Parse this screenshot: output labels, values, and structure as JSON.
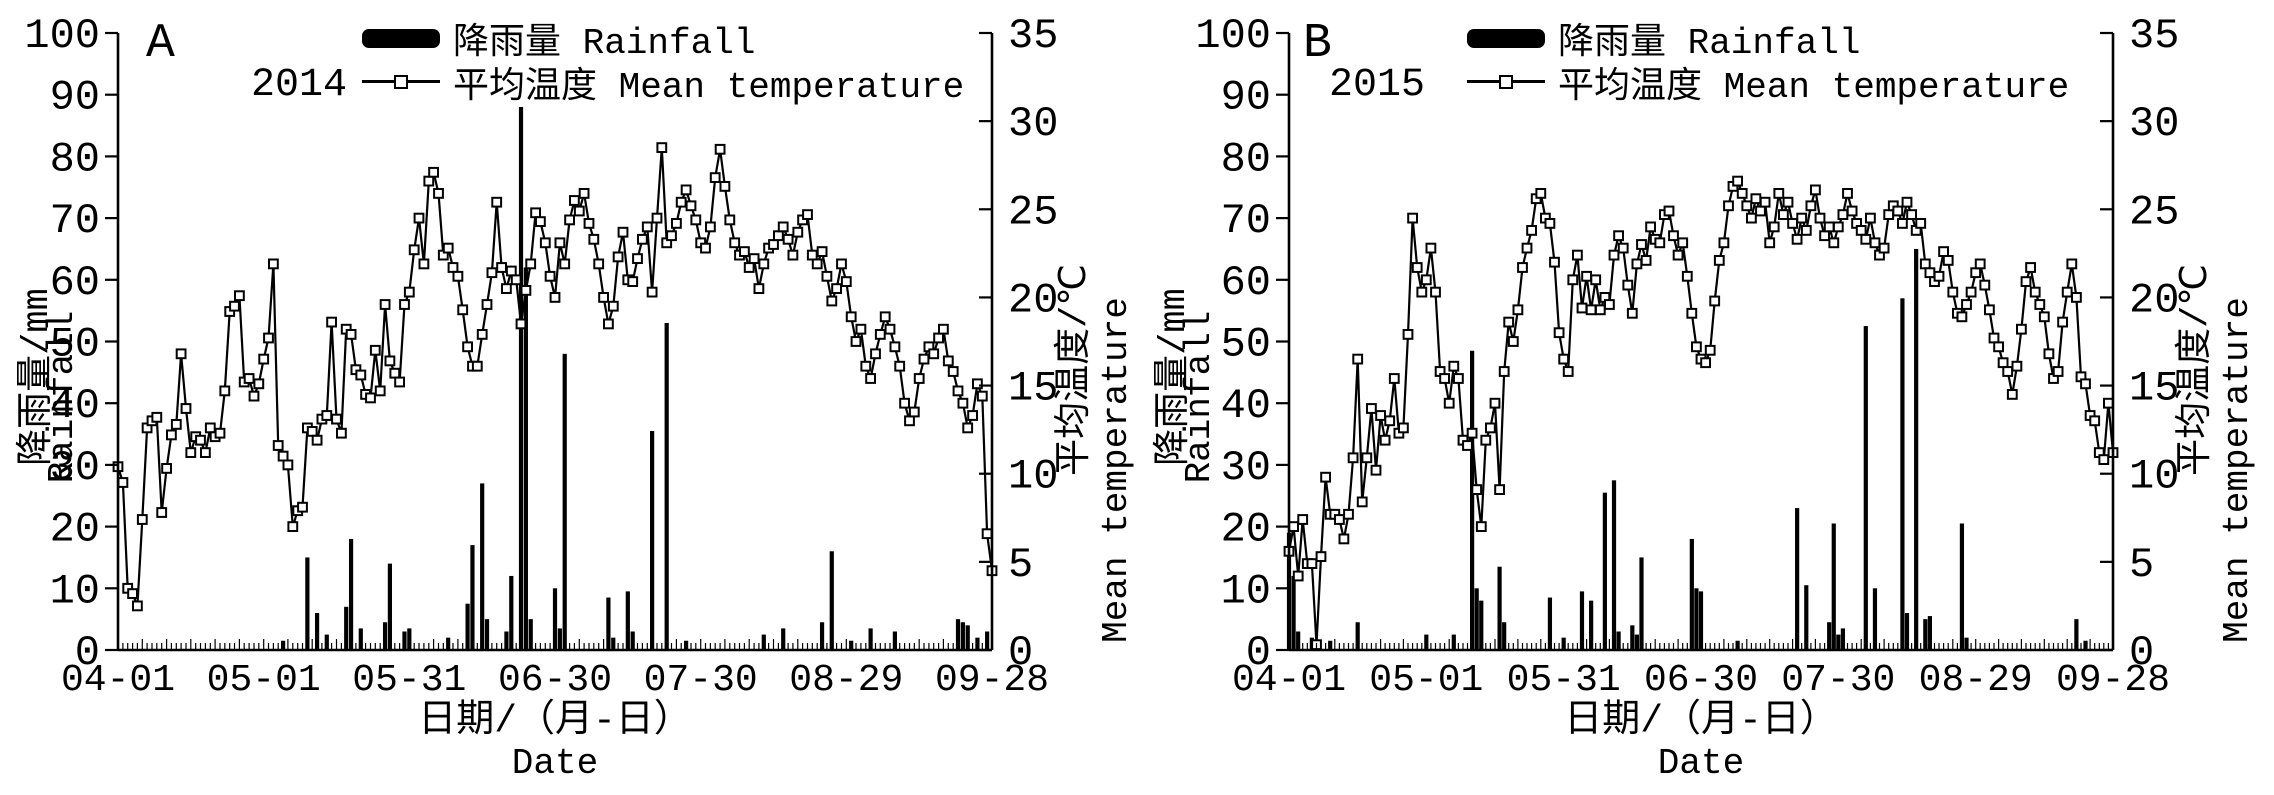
{
  "figure": {
    "background": "#ffffff",
    "ink": "#000000",
    "x_axis_title_cn": "日期/（月-日）",
    "x_axis_title_en": "Date",
    "x_tick_labels": [
      "04-01",
      "05-01",
      "05-31",
      "06-30",
      "07-30",
      "08-29",
      "09-28"
    ],
    "x_tick_days": [
      0,
      30,
      60,
      90,
      120,
      150,
      180
    ],
    "calendar_months": [
      [
        "04",
        30
      ],
      [
        "05",
        31
      ],
      [
        "06",
        30
      ],
      [
        "07",
        31
      ],
      [
        "08",
        31
      ],
      [
        "09",
        28
      ]
    ],
    "left_axis": {
      "title_cn": "降雨量/mm",
      "title_en": "Rainfall",
      "min": 0,
      "max": 100,
      "tick_step": 10
    },
    "right_axis": {
      "title_cn": "平均温度/℃",
      "title_en": "Mean temperature",
      "min": 0,
      "max": 35,
      "tick_step": 5
    },
    "legend": [
      {
        "swatch": "filled-bar",
        "label": "降雨量 Rainfall"
      },
      {
        "swatch": "line-open-square-marker",
        "label": "平均温度 Mean temperature"
      }
    ]
  },
  "chart_data": [
    {
      "panel_label": "A",
      "year": "2014",
      "type": "combo-bar-line",
      "x_start": "04-01",
      "x_end": "09-28",
      "n_days": 181,
      "left_ylim": [
        0,
        100
      ],
      "right_ylim": [
        0,
        35
      ],
      "rainfall_mm_by_date": {
        "05-05": 1.5,
        "05-10": 15,
        "05-12": 6,
        "05-14": 2.5,
        "05-18": 7,
        "05-19": 18,
        "05-21": 3.5,
        "05-26": 4.5,
        "05-27": 14,
        "05-30": 3,
        "05-31": 3.5,
        "06-08": 2,
        "06-12": 7.5,
        "06-13": 17,
        "06-15": 27,
        "06-16": 5,
        "06-20": 3,
        "06-21": 12,
        "06-23": 88,
        "06-24": 62,
        "06-25": 5,
        "06-30": 10,
        "07-01": 3.5,
        "07-02": 48,
        "07-11": 8.5,
        "07-12": 2,
        "07-15": 9.5,
        "07-16": 3,
        "07-20": 35.5,
        "07-23": 53,
        "07-27": 1.5,
        "08-12": 2.5,
        "08-16": 3.5,
        "08-24": 4.5,
        "08-26": 16,
        "08-30": 1.5,
        "09-03": 3.5,
        "09-08": 3,
        "09-21": 5,
        "09-22": 4.5,
        "09-23": 4,
        "09-25": 2,
        "09-27": 3
      },
      "mean_temperature_c_daily": [
        10.4,
        9.5,
        3.5,
        3.2,
        2.5,
        7.4,
        12.6,
        13.0,
        13.2,
        7.8,
        10.3,
        12.2,
        12.8,
        16.8,
        13.7,
        11.2,
        12.1,
        11.9,
        11.2,
        12.6,
        12.1,
        12.3,
        14.7,
        19.2,
        19.5,
        20.1,
        15.2,
        15.4,
        14.4,
        15.1,
        16.5,
        17.7,
        21.9,
        11.6,
        11.0,
        10.5,
        7.0,
        7.9,
        8.1,
        12.6,
        12.4,
        11.9,
        13.1,
        13.3,
        18.6,
        13.1,
        12.3,
        18.2,
        17.9,
        15.9,
        15.6,
        14.5,
        14.3,
        17.0,
        14.7,
        19.6,
        16.4,
        15.7,
        15.2,
        19.6,
        20.3,
        22.7,
        24.5,
        21.9,
        26.6,
        27.1,
        25.9,
        22.4,
        22.8,
        21.7,
        21.2,
        19.3,
        17.2,
        16.1,
        16.1,
        17.9,
        19.6,
        21.4,
        25.4,
        21.7,
        20.5,
        21.5,
        21.0,
        18.5,
        20.4,
        21.9,
        24.8,
        24.3,
        23.1,
        21.2,
        20.0,
        23.1,
        21.9,
        24.4,
        25.5,
        24.9,
        25.9,
        24.2,
        23.3,
        21.9,
        20.0,
        18.5,
        19.5,
        22.3,
        23.7,
        21.0,
        20.9,
        22.2,
        23.3,
        24.0,
        20.3,
        24.5,
        28.5,
        23.1,
        23.5,
        24.2,
        25.4,
        26.1,
        25.2,
        24.4,
        23.1,
        22.8,
        24.0,
        26.8,
        28.4,
        26.3,
        24.4,
        23.1,
        22.4,
        22.6,
        21.7,
        22.2,
        20.5,
        21.9,
        22.8,
        23.0,
        23.5,
        24.0,
        23.3,
        22.4,
        23.7,
        24.4,
        24.7,
        22.4,
        21.9,
        22.6,
        21.2,
        19.8,
        20.5,
        21.9,
        20.9,
        18.9,
        17.5,
        18.2,
        16.1,
        15.4,
        16.8,
        17.9,
        18.9,
        18.2,
        17.2,
        16.1,
        14.0,
        13.0,
        13.5,
        15.4,
        16.5,
        17.2,
        16.8,
        17.7,
        18.2,
        16.4,
        15.8,
        14.7,
        14.0,
        12.6,
        13.3,
        15.1,
        14.4,
        6.6,
        4.5
      ]
    },
    {
      "panel_label": "B",
      "year": "2015",
      "type": "combo-bar-line",
      "x_start": "04-01",
      "x_end": "09-28",
      "n_days": 181,
      "left_ylim": [
        0,
        100
      ],
      "right_ylim": [
        0,
        35
      ],
      "rainfall_mm_by_date": {
        "04-01": 19,
        "04-02": 12,
        "04-03": 3,
        "04-06": 2,
        "04-10": 1.5,
        "04-16": 4.5,
        "05-01": 2.5,
        "05-07": 2.5,
        "05-11": 48.5,
        "05-12": 10,
        "05-13": 8,
        "05-17": 13.5,
        "05-18": 4.5,
        "05-28": 8.5,
        "05-31": 2,
        "06-04": 9.5,
        "06-06": 8,
        "06-09": 25.5,
        "06-11": 27.5,
        "06-12": 3,
        "06-15": 4,
        "06-16": 2.5,
        "06-17": 15,
        "06-28": 18,
        "06-29": 10,
        "06-30": 9.5,
        "07-08": 1.5,
        "07-21": 23,
        "07-23": 10.5,
        "07-28": 4.5,
        "07-29": 20.5,
        "07-30": 2.5,
        "07-31": 3.5,
        "08-05": 52.5,
        "08-07": 10,
        "08-13": 57,
        "08-14": 6,
        "08-16": 65,
        "08-18": 5,
        "08-19": 5.5,
        "08-26": 20.5,
        "08-27": 2,
        "09-20": 5,
        "09-22": 1.5
      },
      "mean_temperature_c_daily": [
        5.6,
        7.0,
        4.2,
        7.4,
        4.9,
        4.9,
        0.3,
        5.3,
        9.8,
        7.7,
        7.7,
        7.4,
        6.3,
        7.7,
        10.9,
        16.5,
        8.4,
        10.9,
        13.7,
        10.2,
        13.3,
        11.9,
        13.0,
        15.4,
        12.3,
        12.6,
        17.9,
        24.5,
        21.7,
        20.3,
        21.0,
        22.8,
        20.3,
        15.8,
        15.4,
        14.0,
        16.1,
        15.4,
        11.9,
        11.6,
        12.3,
        9.1,
        7.0,
        11.9,
        12.6,
        14.0,
        9.1,
        15.8,
        18.6,
        17.5,
        19.3,
        21.7,
        22.8,
        23.8,
        25.6,
        25.9,
        24.5,
        24.2,
        22.0,
        18.0,
        16.5,
        15.8,
        21.0,
        22.4,
        19.4,
        21.2,
        19.3,
        21.0,
        19.3,
        20.0,
        19.6,
        22.4,
        23.5,
        22.8,
        20.7,
        19.1,
        21.9,
        23.0,
        22.1,
        24.0,
        23.3,
        23.1,
        24.7,
        24.9,
        23.5,
        22.4,
        23.1,
        21.2,
        19.1,
        17.2,
        16.5,
        16.3,
        17.0,
        19.8,
        22.1,
        23.1,
        25.2,
        26.3,
        26.6,
        25.9,
        25.2,
        24.5,
        25.6,
        24.9,
        25.4,
        23.1,
        24.0,
        25.9,
        24.7,
        25.4,
        24.2,
        23.3,
        24.5,
        23.8,
        25.2,
        26.1,
        24.5,
        23.5,
        24.0,
        23.1,
        24.0,
        24.7,
        25.9,
        24.9,
        24.2,
        23.8,
        23.3,
        24.5,
        23.1,
        22.4,
        22.8,
        24.7,
        25.2,
        24.9,
        24.2,
        25.4,
        24.7,
        23.8,
        24.2,
        21.9,
        21.4,
        20.9,
        21.2,
        22.6,
        22.1,
        20.3,
        19.1,
        18.9,
        19.6,
        20.3,
        21.4,
        21.9,
        20.7,
        19.3,
        17.7,
        17.2,
        16.3,
        15.8,
        14.5,
        16.1,
        18.2,
        20.9,
        21.7,
        20.3,
        19.6,
        18.9,
        16.8,
        15.4,
        15.8,
        18.6,
        20.3,
        21.9,
        20.0,
        15.5,
        15.1,
        13.3,
        13.0,
        11.2,
        10.8,
        14.0,
        11.2
      ]
    }
  ]
}
